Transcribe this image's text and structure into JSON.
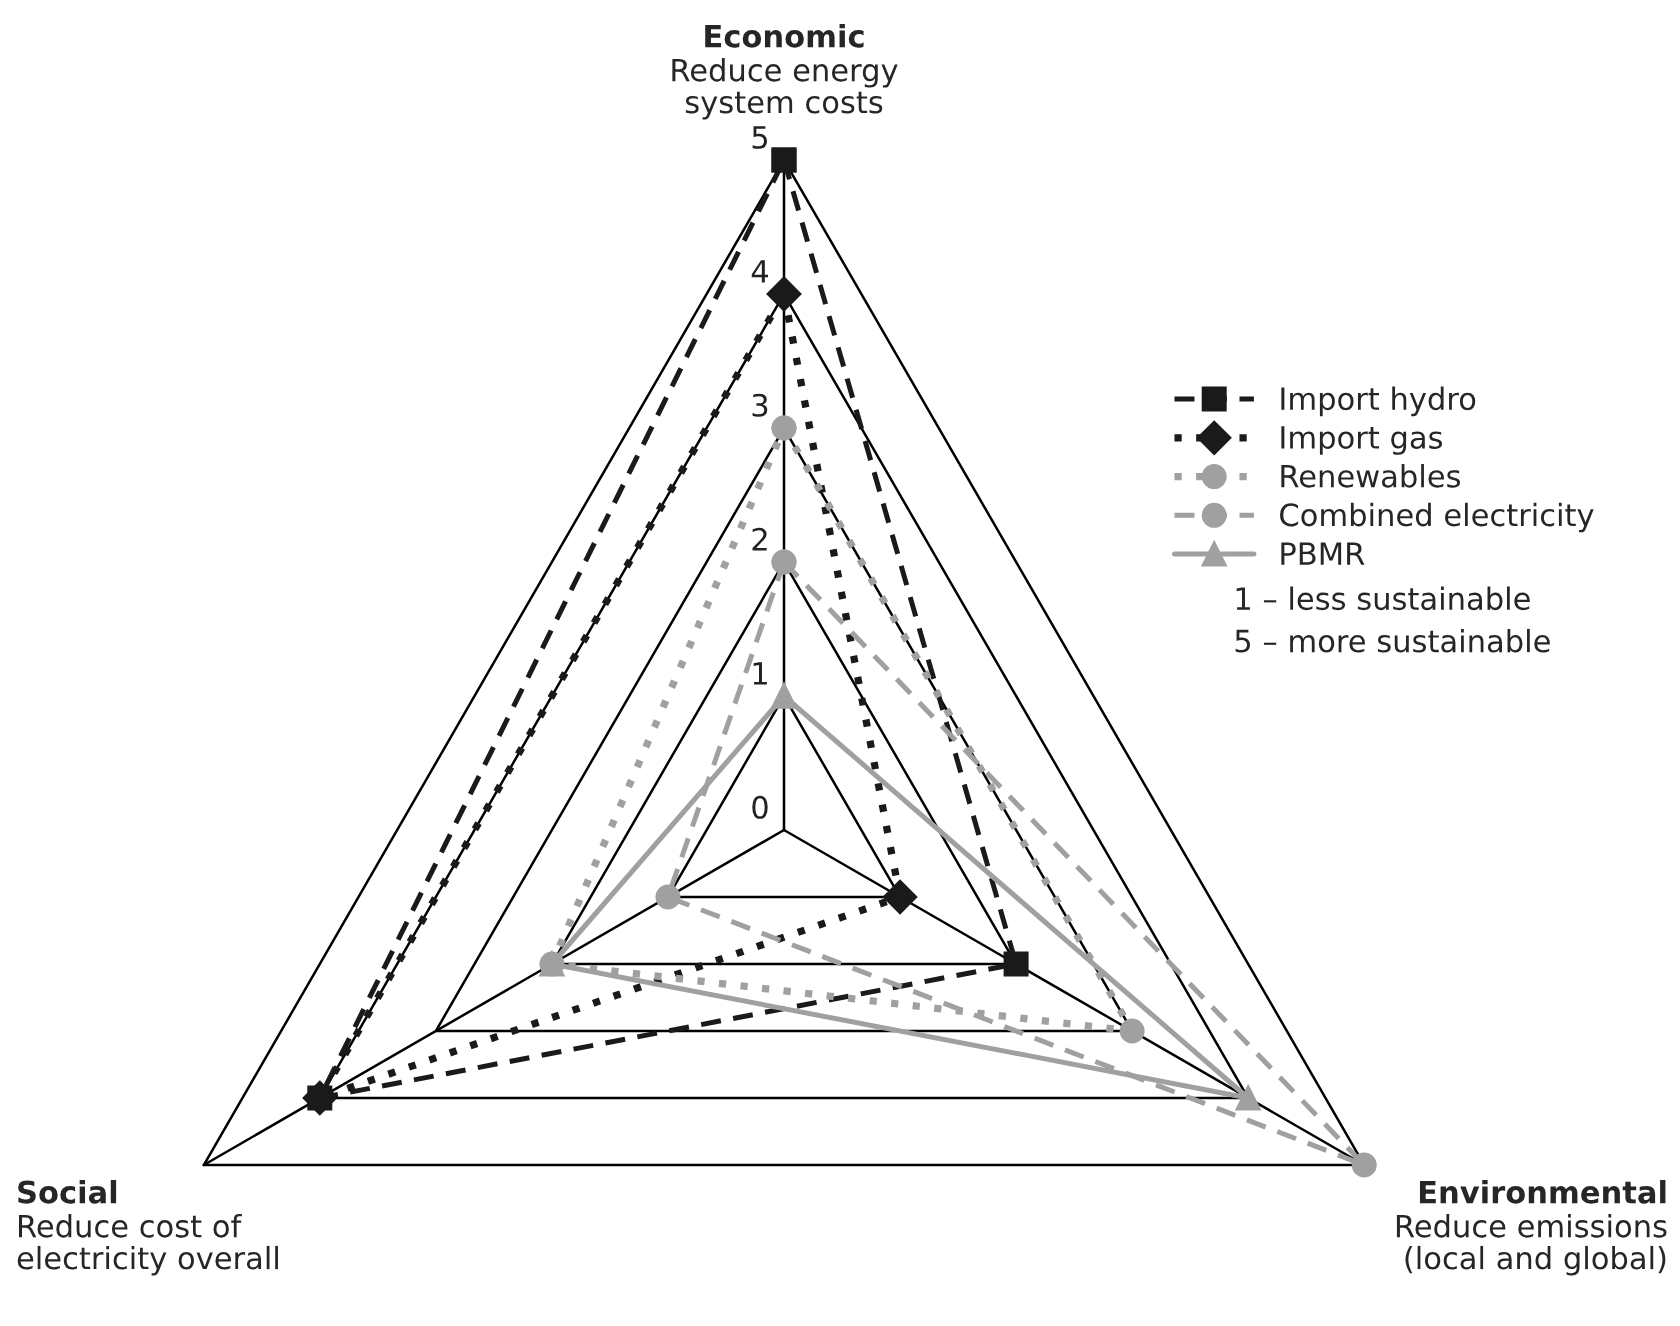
{
  "chart_data": {
    "type": "radar",
    "categories": [
      "Economic",
      "Environmental",
      "Social"
    ],
    "series": [
      {
        "name": "Import hydro",
        "color": "#1a1a1a",
        "values": [
          5,
          2,
          4
        ],
        "marker": "square",
        "line_style": "dashed"
      },
      {
        "name": "Import gas",
        "color": "#1a1a1a",
        "values": [
          4,
          1,
          4
        ],
        "marker": "diamond",
        "line_style": "dotted"
      },
      {
        "name": "Renewables",
        "color": "#a0a0a0",
        "values": [
          3,
          3,
          2
        ],
        "marker": "circle",
        "line_style": "dotted"
      },
      {
        "name": "Combined electricity",
        "color": "#a0a0a0",
        "values": [
          2,
          5,
          1
        ],
        "marker": "circle",
        "line_style": "dashed"
      },
      {
        "name": "PBMR",
        "color": "#a0a0a0",
        "values": [
          1,
          4,
          2
        ],
        "marker": "triangle",
        "line_style": "solid"
      }
    ],
    "ylim": [
      0,
      5
    ],
    "yticks": [
      0,
      1,
      2,
      3,
      4,
      5
    ],
    "grid": true,
    "legend": "top right",
    "annotations": [
      "Reduce energy\nsystem costs",
      "Reduce emissions\n(local and global)",
      "Reduce cost of\nelectricity overall",
      "1 – less sustainable",
      "5 – more sustainable"
    ]
  }
}
